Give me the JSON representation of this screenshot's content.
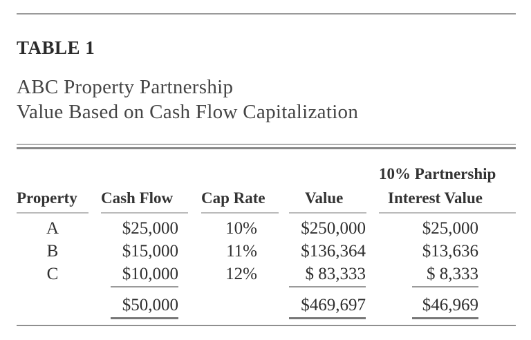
{
  "table": {
    "label": "TABLE 1",
    "title_line1": "ABC Property Partnership",
    "title_line2": "Value Based on Cash Flow Capitalization",
    "headers": {
      "property": "Property",
      "cash_flow": "Cash Flow",
      "cap_rate": "Cap Rate",
      "value": "Value",
      "interest_line1": "10% Partnership",
      "interest_line2": "Interest Value"
    },
    "rows": [
      {
        "property": "A",
        "cash_flow": "$25,000",
        "cap_rate": "10%",
        "value": "$250,000",
        "interest": "$25,000"
      },
      {
        "property": "B",
        "cash_flow": "$15,000",
        "cap_rate": "11%",
        "value": "$136,364",
        "interest": "$13,636"
      },
      {
        "property": "C",
        "cash_flow": "$10,000",
        "cap_rate": "12%",
        "value": "$ 83,333",
        "interest": "$ 8,333"
      }
    ],
    "totals": {
      "cash_flow": "$50,000",
      "value": "$469,697",
      "interest": "$46,969"
    }
  }
}
